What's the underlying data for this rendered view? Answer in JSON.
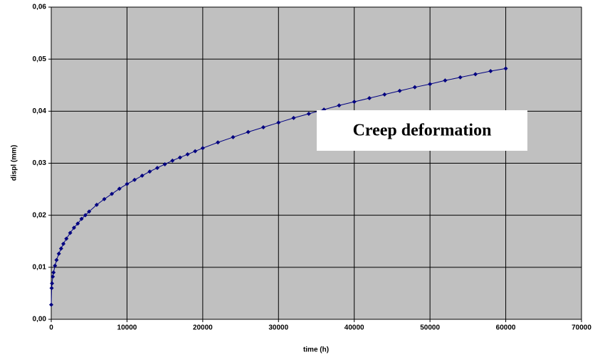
{
  "chart_data": {
    "type": "line",
    "annotation": "Creep deformation",
    "x_label": "time (h)",
    "y_label": "displ (mm)",
    "x": [
      0,
      50,
      100,
      200,
      300,
      500,
      700,
      1000,
      1300,
      1600,
      2000,
      2500,
      3000,
      3500,
      4000,
      4500,
      5000,
      6000,
      7000,
      8000,
      9000,
      10000,
      11000,
      12000,
      13000,
      14000,
      15000,
      16000,
      17000,
      18000,
      19000,
      20000,
      22000,
      24000,
      26000,
      28000,
      30000,
      32000,
      34000,
      36000,
      38000,
      40000,
      42000,
      44000,
      46000,
      48000,
      50000,
      52000,
      54000,
      56000,
      58000,
      60000
    ],
    "series": [
      {
        "name": "displ",
        "color": "#000080",
        "values": [
          0.0028,
          0.006,
          0.0069,
          0.0082,
          0.009,
          0.0103,
          0.0114,
          0.0126,
          0.0136,
          0.0145,
          0.0155,
          0.0166,
          0.0176,
          0.0184,
          0.0193,
          0.02,
          0.0207,
          0.022,
          0.0231,
          0.0241,
          0.0251,
          0.026,
          0.0268,
          0.0276,
          0.0284,
          0.0291,
          0.0298,
          0.0305,
          0.0311,
          0.0317,
          0.0323,
          0.0329,
          0.034,
          0.035,
          0.036,
          0.0369,
          0.0378,
          0.0387,
          0.0395,
          0.0403,
          0.0411,
          0.0418,
          0.0425,
          0.0432,
          0.0439,
          0.0446,
          0.0452,
          0.0459,
          0.0465,
          0.0471,
          0.0477,
          0.0482
        ]
      }
    ],
    "xlim": [
      0,
      70000
    ],
    "xticks": [
      0,
      10000,
      20000,
      30000,
      40000,
      50000,
      60000,
      70000
    ],
    "ylim": [
      0,
      0.06
    ],
    "yticks": [
      {
        "value": 0,
        "label": "0,00"
      },
      {
        "value": 0.01,
        "label": "0,01"
      },
      {
        "value": 0.02,
        "label": "0,02"
      },
      {
        "value": 0.03,
        "label": "0,03"
      },
      {
        "value": 0.04,
        "label": "0,04"
      },
      {
        "value": 0.05,
        "label": "0,05"
      },
      {
        "value": 0.06,
        "label": "0,06"
      }
    ],
    "grid": true,
    "plot_background": "#c0c0c0"
  }
}
